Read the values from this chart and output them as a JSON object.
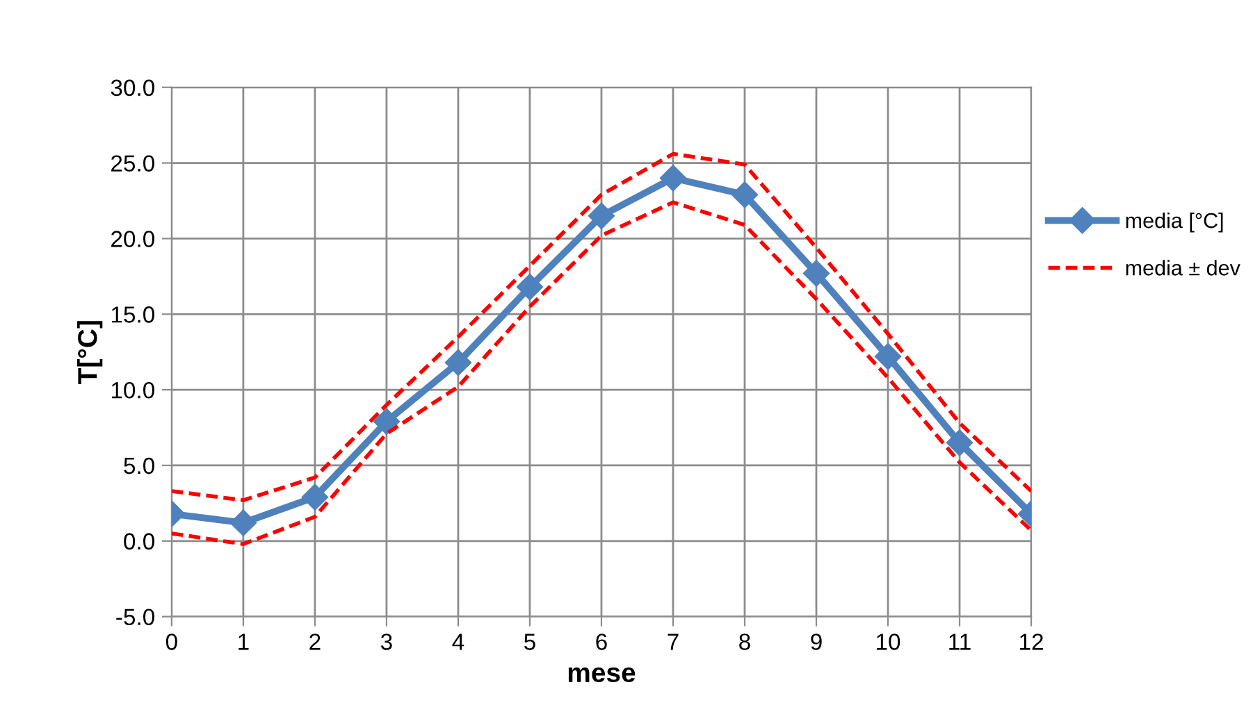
{
  "chart_data": {
    "type": "line",
    "xlabel": "mese",
    "ylabel": "T[°C]",
    "x": [
      0,
      1,
      2,
      3,
      4,
      5,
      6,
      7,
      8,
      9,
      10,
      11,
      12
    ],
    "xlim": [
      0,
      12
    ],
    "xticks": [
      0,
      1,
      2,
      3,
      4,
      5,
      6,
      7,
      8,
      9,
      10,
      11,
      12
    ],
    "ylim": [
      -5,
      30
    ],
    "yticks": [
      {
        "value": -5,
        "label": "-5.0"
      },
      {
        "value": 0,
        "label": "0.0"
      },
      {
        "value": 5,
        "label": "5.0"
      },
      {
        "value": 10,
        "label": "10.0"
      },
      {
        "value": 15,
        "label": "15.0"
      },
      {
        "value": 20,
        "label": "20.0"
      },
      {
        "value": 25,
        "label": "25.0"
      },
      {
        "value": 30,
        "label": "30.0"
      }
    ],
    "grid": true,
    "legend": "right",
    "series": [
      {
        "name": "media [°C]",
        "color": "#4f81bd",
        "marker": "diamond",
        "line_style": "solid",
        "values": [
          1.8,
          1.2,
          2.9,
          7.9,
          11.8,
          16.8,
          21.5,
          24.0,
          22.9,
          17.7,
          12.2,
          6.5,
          1.8
        ]
      },
      {
        "name": "media ± dev",
        "color": "#ff0000",
        "marker": "none",
        "line_style": "dashed",
        "values": [
          3.3,
          2.7,
          4.2,
          9.0,
          13.5,
          18.2,
          22.9,
          25.6,
          24.9,
          19.4,
          13.7,
          7.8,
          3.3
        ]
      },
      {
        "color": "#ff0000",
        "marker": "none",
        "line_style": "dashed",
        "values": [
          0.5,
          -0.2,
          1.6,
          7.1,
          10.2,
          15.5,
          20.2,
          22.4,
          20.9,
          16.0,
          10.8,
          5.2,
          0.7
        ]
      }
    ]
  }
}
